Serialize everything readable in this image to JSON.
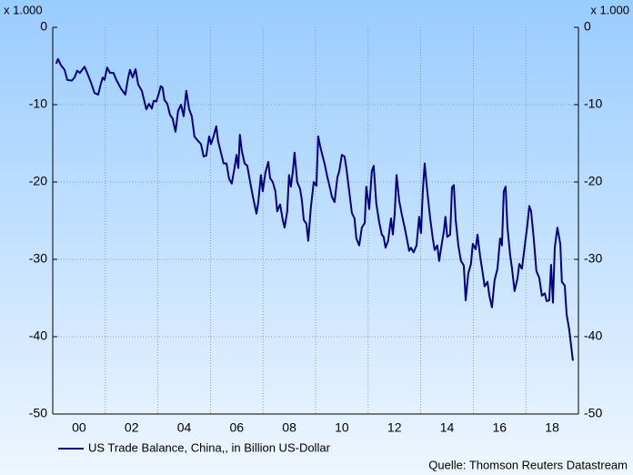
{
  "chart_data": {
    "type": "line",
    "y_unit_label": "x 1.000",
    "source": "Quelle: Thomson Reuters Datastream",
    "xlim": [
      -1,
      19
    ],
    "xticks": [
      {
        "value": 0,
        "label": "00"
      },
      {
        "value": 2,
        "label": "02"
      },
      {
        "value": 4,
        "label": "04"
      },
      {
        "value": 6,
        "label": "06"
      },
      {
        "value": 8,
        "label": "08"
      },
      10,
      12,
      14,
      16,
      18
    ],
    "xgrid": [
      1,
      3,
      5,
      7,
      9,
      11,
      13,
      15,
      17
    ],
    "ylim": [
      -50,
      0
    ],
    "yticks": [
      -50,
      -40,
      -30,
      -20,
      -10,
      0
    ],
    "grid": true,
    "legend": "bottom-left",
    "x": [
      -0.87,
      -0.8,
      -0.69,
      -0.55,
      -0.45,
      -0.28,
      -0.17,
      -0.07,
      0.03,
      0.21,
      0.31,
      0.45,
      0.59,
      0.73,
      0.83,
      0.9,
      0.97,
      1.07,
      1.18,
      1.31,
      1.42,
      1.59,
      1.76,
      1.87,
      1.94,
      2.04,
      2.15,
      2.25,
      2.39,
      2.46,
      2.56,
      2.66,
      2.77,
      2.84,
      2.94,
      3.04,
      3.11,
      3.18,
      3.25,
      3.36,
      3.46,
      3.56,
      3.67,
      3.77,
      3.88,
      3.98,
      4.08,
      4.19,
      4.29,
      4.39,
      4.53,
      4.64,
      4.74,
      4.84,
      4.95,
      5.02,
      5.12,
      5.22,
      5.29,
      5.4,
      5.5,
      5.61,
      5.71,
      5.81,
      5.92,
      5.99,
      6.06,
      6.12,
      6.19,
      6.3,
      6.4,
      6.51,
      6.61,
      6.75,
      6.82,
      6.92,
      6.99,
      7.09,
      7.2,
      7.27,
      7.37,
      7.47,
      7.54,
      7.65,
      7.75,
      7.82,
      7.92,
      7.99,
      8.06,
      8.13,
      8.2,
      8.3,
      8.41,
      8.48,
      8.55,
      8.65,
      8.72,
      8.82,
      8.93,
      9.03,
      9.1,
      9.17,
      9.27,
      9.34,
      9.45,
      9.55,
      9.62,
      9.72,
      9.83,
      9.9,
      10.0,
      10.1,
      10.17,
      10.28,
      10.38,
      10.48,
      10.55,
      10.66,
      10.76,
      10.87,
      10.93,
      11.04,
      11.14,
      11.21,
      11.31,
      11.42,
      11.52,
      11.59,
      11.66,
      11.76,
      11.87,
      11.94,
      12.01,
      12.08,
      12.18,
      12.28,
      12.39,
      12.46,
      12.56,
      12.63,
      12.73,
      12.84,
      12.94,
      13.01,
      13.08,
      13.15,
      13.25,
      13.36,
      13.46,
      13.53,
      13.63,
      13.7,
      13.81,
      13.88,
      13.94,
      14.01,
      14.12,
      14.19,
      14.26,
      14.33,
      14.43,
      14.53,
      14.64,
      14.71,
      14.81,
      14.91,
      14.98,
      15.09,
      15.16,
      15.26,
      15.36,
      15.43,
      15.54,
      15.61,
      15.71,
      15.81,
      15.92,
      16.02,
      16.09,
      16.16,
      16.23,
      16.3,
      16.4,
      16.47,
      16.57,
      16.68,
      16.75,
      16.85,
      16.96,
      17.06,
      17.13,
      17.2,
      17.3,
      17.4,
      17.51,
      17.61,
      17.72,
      17.79,
      17.89,
      17.96,
      18.03,
      18.1,
      18.2,
      18.31,
      18.37,
      18.48,
      18.55,
      18.65,
      18.79
    ],
    "series": [
      {
        "name": "US Trade Balance, China,, in Billion US-Dollar",
        "color": "#000080",
        "values": [
          -4.7,
          -4.1,
          -4.9,
          -5.5,
          -6.8,
          -6.9,
          -6.5,
          -5.6,
          -5.9,
          -5.1,
          -5.9,
          -7.1,
          -8.5,
          -8.7,
          -7.3,
          -6.5,
          -6.8,
          -5.2,
          -5.9,
          -5.9,
          -6.8,
          -7.9,
          -8.7,
          -6.5,
          -5.5,
          -6.5,
          -5.4,
          -7.4,
          -8.2,
          -9.2,
          -10.6,
          -9.9,
          -10.5,
          -9.5,
          -9.6,
          -8.5,
          -7.6,
          -7.8,
          -9.4,
          -9.9,
          -11.3,
          -11.8,
          -13.5,
          -10.8,
          -10.0,
          -11.5,
          -8.2,
          -10.6,
          -11.5,
          -14.1,
          -14.7,
          -15.1,
          -16.7,
          -16.6,
          -14.1,
          -15.1,
          -14.1,
          -12.8,
          -14.7,
          -16.2,
          -17.6,
          -17.6,
          -19.6,
          -20.2,
          -18.1,
          -16.5,
          -18.2,
          -13.9,
          -15.9,
          -17.6,
          -17.9,
          -20.0,
          -21.8,
          -24.1,
          -22.6,
          -19.1,
          -21.2,
          -18.8,
          -17.4,
          -19.5,
          -20.0,
          -21.2,
          -23.8,
          -22.9,
          -24.9,
          -25.9,
          -23.8,
          -19.1,
          -20.6,
          -18.8,
          -16.2,
          -20.0,
          -20.9,
          -22.4,
          -24.9,
          -25.4,
          -27.6,
          -23.3,
          -20.0,
          -20.5,
          -14.1,
          -15.3,
          -16.7,
          -17.6,
          -19.4,
          -20.8,
          -21.9,
          -22.6,
          -19.4,
          -18.6,
          -16.5,
          -16.7,
          -18.2,
          -21.2,
          -24.0,
          -24.7,
          -27.3,
          -28.2,
          -25.9,
          -25.3,
          -20.6,
          -23.5,
          -18.6,
          -17.9,
          -22.8,
          -25.2,
          -26.8,
          -27.1,
          -28.5,
          -27.6,
          -24.7,
          -26.8,
          -24.1,
          -19.1,
          -22.4,
          -24.2,
          -25.9,
          -27.1,
          -28.9,
          -28.5,
          -29.1,
          -28.2,
          -24.5,
          -26.6,
          -21.2,
          -17.6,
          -21.2,
          -24.7,
          -27.3,
          -28.8,
          -28.2,
          -30.2,
          -27.8,
          -26.4,
          -24.5,
          -27.1,
          -26.8,
          -20.7,
          -20.4,
          -24.9,
          -28.2,
          -30.2,
          -30.8,
          -35.3,
          -31.8,
          -30.6,
          -28.0,
          -28.7,
          -26.8,
          -29.6,
          -31.8,
          -33.5,
          -32.9,
          -34.7,
          -36.2,
          -32.7,
          -31.2,
          -27.3,
          -28.2,
          -21.2,
          -20.6,
          -25.9,
          -29.4,
          -31.1,
          -34.1,
          -32.5,
          -30.6,
          -31.2,
          -28.2,
          -25.5,
          -23.1,
          -23.8,
          -27.3,
          -31.5,
          -32.4,
          -34.7,
          -34.4,
          -35.4,
          -35.3,
          -30.7,
          -35.6,
          -28.5,
          -25.9,
          -28.0,
          -32.9,
          -33.4,
          -37.1,
          -39.1,
          -43.1
        ]
      }
    ]
  }
}
